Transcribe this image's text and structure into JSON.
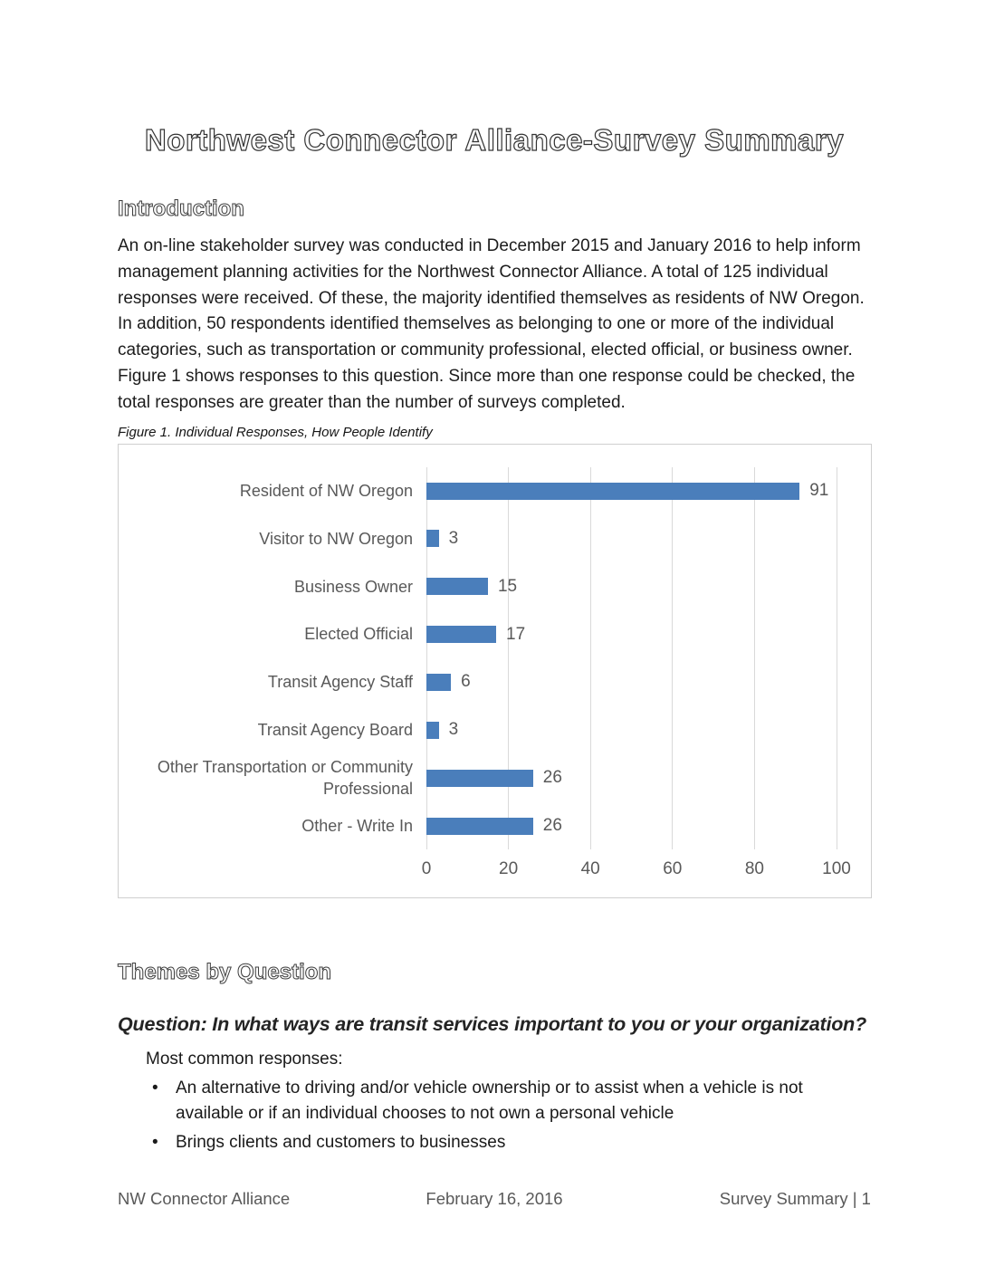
{
  "page": {
    "title": "Northwest Connector Alliance-Survey Summary",
    "introduction": {
      "heading": "Introduction",
      "paragraph": "An on-line stakeholder survey was conducted in December 2015 and January 2016 to help inform management planning activities for the Northwest Connector Alliance.  A total of 125 individual responses were received. Of these, the majority identified themselves as residents of NW Oregon. In addition, 50 respondents identified themselves as belonging to one or more of the individual categories, such as transportation or community professional, elected official, or business owner. Figure 1 shows responses to this question. Since more than one response could be checked, the total responses are greater than the number of surveys completed."
    },
    "figure_caption": "Figure 1. Individual Responses, How People Identify",
    "themes": {
      "heading": "Themes by Question",
      "question_heading": "Question: In what ways are transit services important to you or your organization?",
      "responses_intro": "Most common responses:",
      "bullets": [
        "An alternative to driving and/or vehicle ownership or to assist when a vehicle is not available or if an individual chooses to not own a personal vehicle",
        "Brings clients and customers to businesses"
      ]
    },
    "footer": {
      "left": "NW Connector Alliance",
      "center": "February 16, 2016",
      "right": "Survey Summary | 1"
    }
  },
  "chart_data": {
    "type": "bar",
    "orientation": "horizontal",
    "title": "",
    "xlabel": "",
    "ylabel": "",
    "categories": [
      "Resident of NW Oregon",
      "Visitor to NW Oregon",
      "Business Owner",
      "Elected Official",
      "Transit Agency Staff",
      "Transit Agency Board",
      "Other Transportation or Community Professional",
      "Other - Write In"
    ],
    "values": [
      91,
      3,
      15,
      17,
      6,
      3,
      26,
      26
    ],
    "data_labels": [
      91,
      3,
      15,
      17,
      6,
      3,
      26,
      26
    ],
    "xlim": [
      0,
      100
    ],
    "xticks": [
      0,
      20,
      40,
      60,
      80,
      100
    ],
    "grid": true,
    "legend": false,
    "bar_color": "#4a7ebb",
    "gridline_color": "#d9d9d9",
    "label_color": "#595959"
  }
}
